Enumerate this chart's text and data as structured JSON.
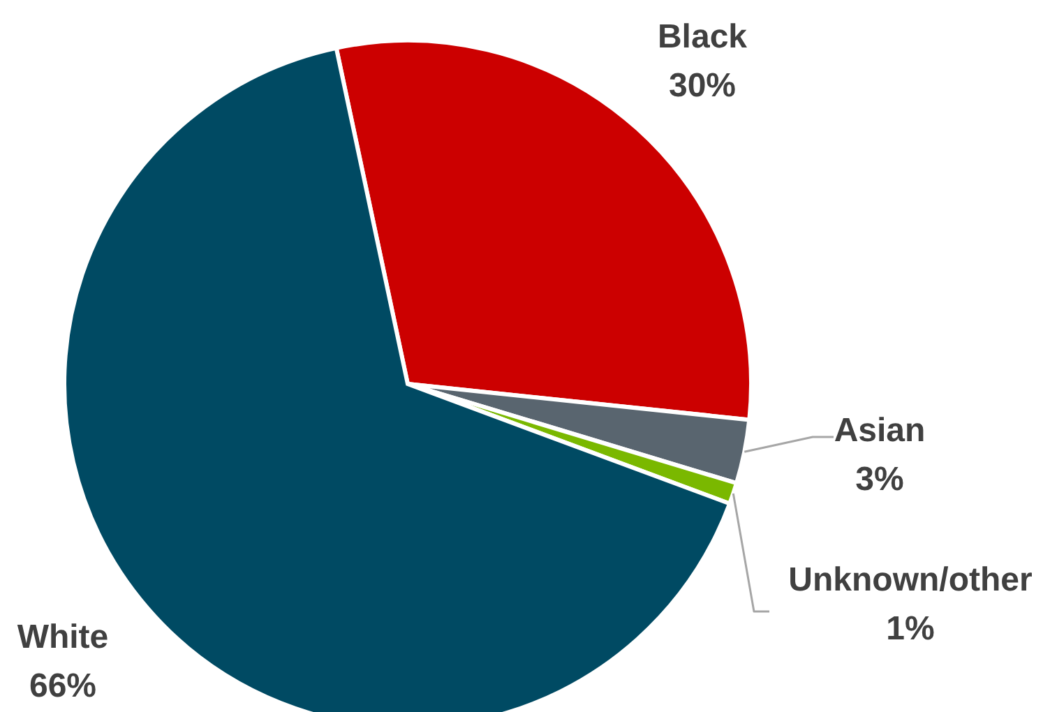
{
  "chart_data": {
    "type": "pie",
    "categories": [
      "Black",
      "Asian",
      "Unknown/other",
      "White"
    ],
    "values": [
      30,
      3,
      1,
      66
    ],
    "colors": [
      "#cc0000",
      "#59656f",
      "#7ab800",
      "#004a63"
    ],
    "value_labels": [
      "30%",
      "3%",
      "1%",
      "66%"
    ]
  }
}
